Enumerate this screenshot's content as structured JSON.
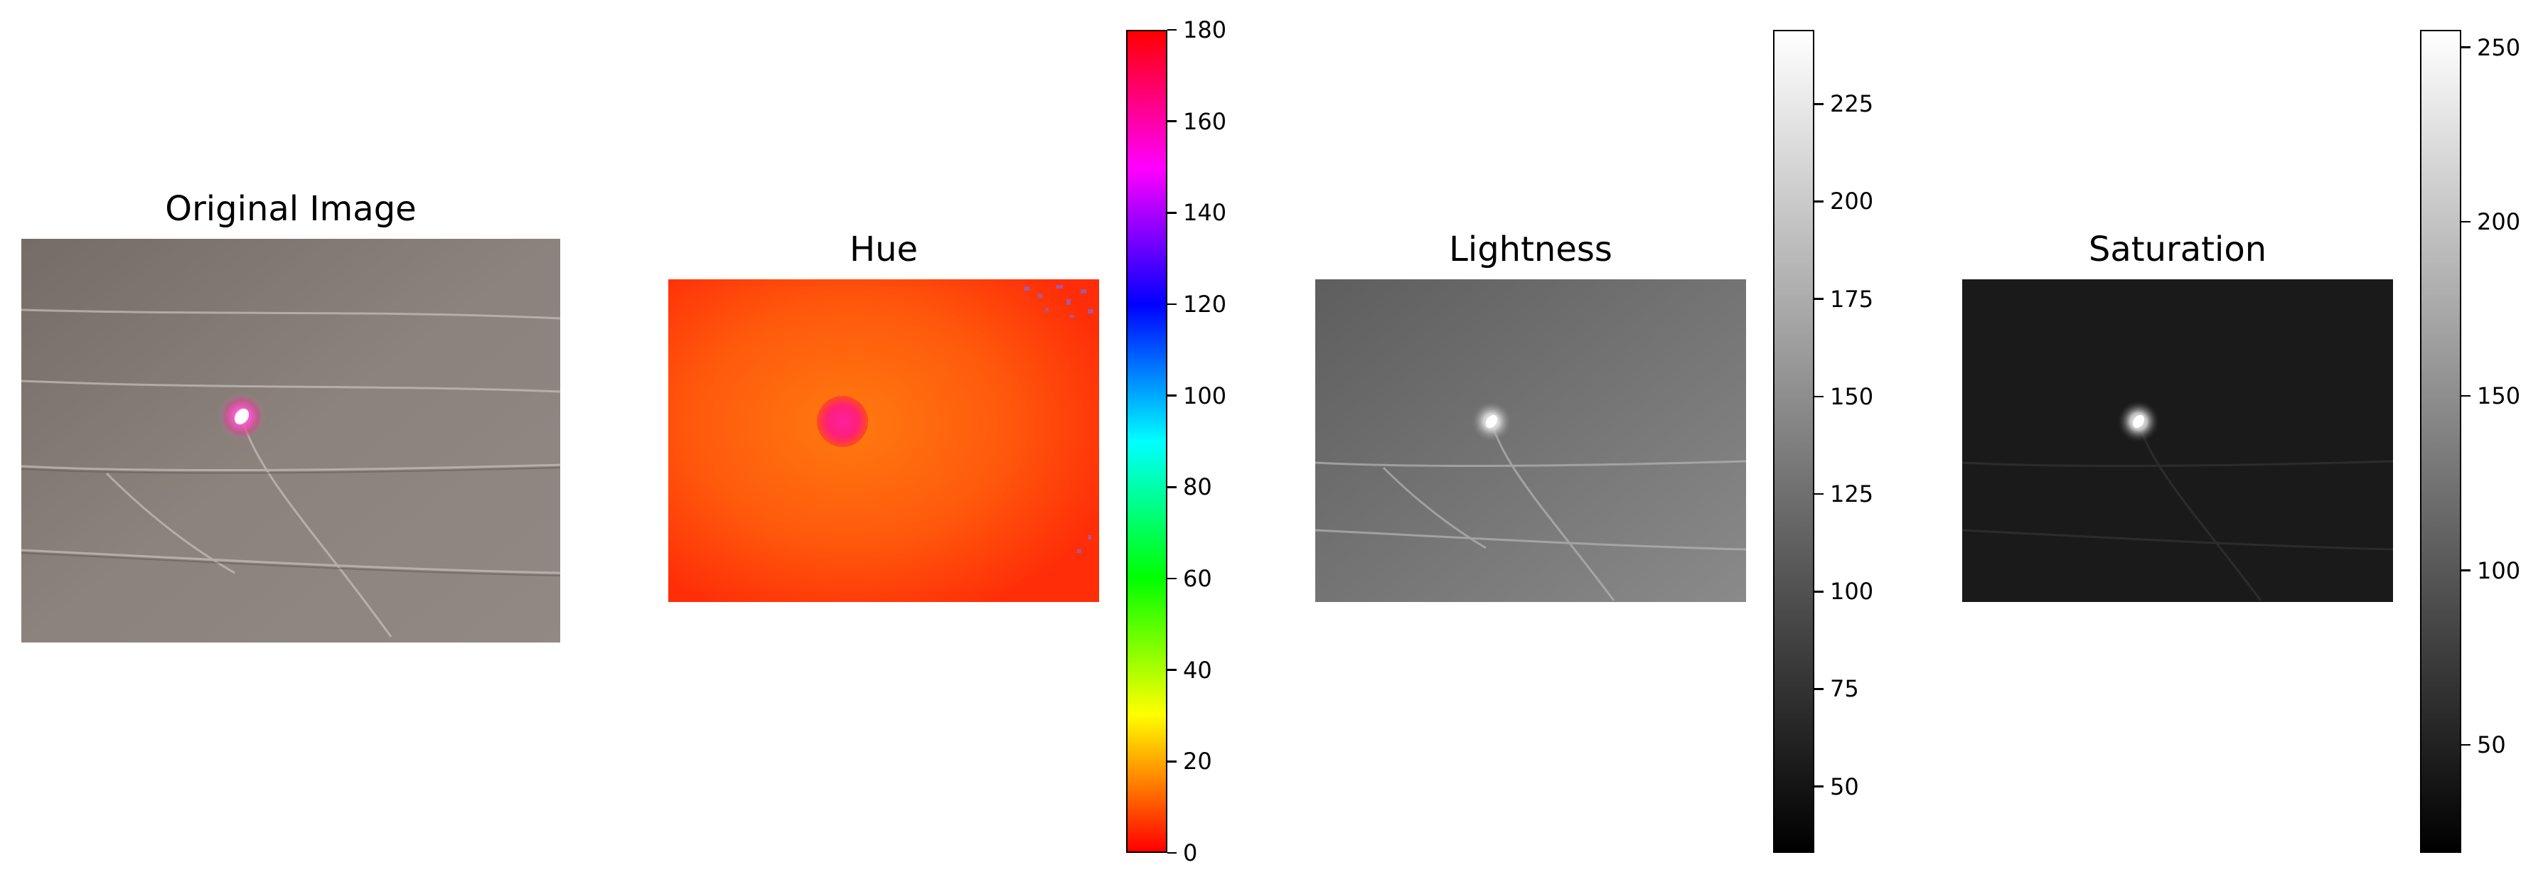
{
  "chart_data": [
    {
      "type": "image",
      "title": "Original Image",
      "description_visible": "photo of wrinkled paper with a bright pink laser spot",
      "axes": "off"
    },
    {
      "type": "heatmap",
      "title": "Hue",
      "colormap": "hsv",
      "colorbar": {
        "min": 0,
        "max": 180,
        "ticks": [
          0,
          20,
          40,
          60,
          80,
          100,
          120,
          140,
          160,
          180
        ]
      },
      "axes": "off"
    },
    {
      "type": "heatmap",
      "title": "Lightness",
      "colormap": "gray",
      "colorbar": {
        "min": 33,
        "max": 244,
        "ticks": [
          50,
          75,
          100,
          125,
          150,
          175,
          200,
          225
        ]
      },
      "axes": "off"
    },
    {
      "type": "heatmap",
      "title": "Saturation",
      "colormap": "gray",
      "colorbar": {
        "min": 19,
        "max": 255,
        "ticks": [
          50,
          100,
          150,
          200,
          250
        ]
      },
      "axes": "off"
    }
  ]
}
